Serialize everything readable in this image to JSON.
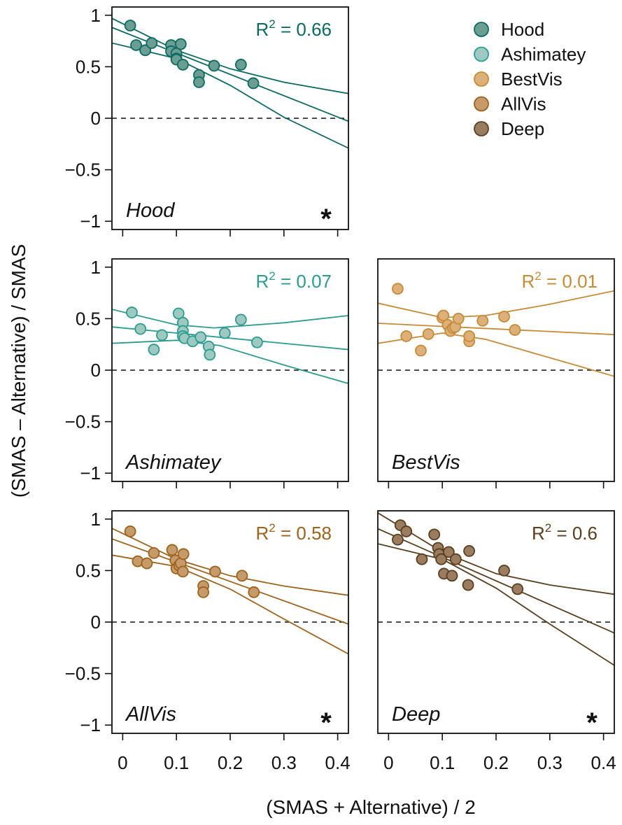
{
  "chart_data": {
    "type": "scatter",
    "xlabel": "(SMAS + Alternative)  / 2",
    "ylabel": "(SMAS – Alternative)  / SMAS",
    "xlim": [
      -0.02,
      0.42
    ],
    "ylim": [
      -1.08,
      1.08
    ],
    "xticks": [
      0,
      0.1,
      0.2,
      0.3,
      0.4
    ],
    "xtick_labels": [
      "0",
      "0.1",
      "0.2",
      "0.3",
      "0.4"
    ],
    "yticks": [
      1,
      0.5,
      0,
      -0.5,
      -1
    ],
    "ytick_labels": [
      "1",
      "0.5",
      "0",
      "−0.5",
      "−1"
    ],
    "zero_line": 0,
    "legend": {
      "placement": "top-right",
      "entries": [
        {
          "name": "Hood",
          "color": "#0b6b63"
        },
        {
          "name": "Ashimatey",
          "color": "#2b9d90"
        },
        {
          "name": "BestVis",
          "color": "#c98a36"
        },
        {
          "name": "AllVis",
          "color": "#a0621a"
        },
        {
          "name": "Deep",
          "color": "#5a3e1d"
        }
      ]
    },
    "panels": [
      {
        "name": "Hood",
        "row": 0,
        "col": 0,
        "color": "#0b6b63",
        "fill": "#6b9e93",
        "r2": "0.66",
        "significant": true,
        "points": [
          [
            0.014,
            0.9
          ],
          [
            0.025,
            0.71
          ],
          [
            0.042,
            0.66
          ],
          [
            0.054,
            0.73
          ],
          [
            0.09,
            0.71
          ],
          [
            0.09,
            0.65
          ],
          [
            0.1,
            0.63
          ],
          [
            0.1,
            0.58
          ],
          [
            0.1,
            0.57
          ],
          [
            0.108,
            0.72
          ],
          [
            0.112,
            0.52
          ],
          [
            0.142,
            0.42
          ],
          [
            0.142,
            0.35
          ],
          [
            0.17,
            0.51
          ],
          [
            0.22,
            0.52
          ],
          [
            0.243,
            0.34
          ]
        ],
        "fit": {
          "a": 0.84,
          "b": -2.07
        },
        "lower_band": [
          [
            -0.02,
            0.73
          ],
          [
            0.1,
            0.58
          ],
          [
            0.2,
            0.32
          ],
          [
            0.3,
            0.01
          ],
          [
            0.42,
            -0.29
          ]
        ],
        "upper_band": [
          [
            -0.02,
            0.97
          ],
          [
            0.1,
            0.66
          ],
          [
            0.2,
            0.48
          ],
          [
            0.3,
            0.35
          ],
          [
            0.42,
            0.24
          ]
        ]
      },
      {
        "name": "Ashimatey",
        "row": 1,
        "col": 0,
        "color": "#2b9d90",
        "fill": "#9dc9c0",
        "r2": "0.07",
        "significant": false,
        "points": [
          [
            0.017,
            0.56
          ],
          [
            0.033,
            0.4
          ],
          [
            0.058,
            0.2
          ],
          [
            0.073,
            0.34
          ],
          [
            0.104,
            0.55
          ],
          [
            0.112,
            0.46
          ],
          [
            0.112,
            0.38
          ],
          [
            0.112,
            0.33
          ],
          [
            0.115,
            0.31
          ],
          [
            0.13,
            0.28
          ],
          [
            0.145,
            0.32
          ],
          [
            0.16,
            0.23
          ],
          [
            0.162,
            0.15
          ],
          [
            0.19,
            0.36
          ],
          [
            0.22,
            0.49
          ],
          [
            0.25,
            0.27
          ]
        ],
        "fit": {
          "a": 0.41,
          "b": -0.5
        },
        "lower_band": [
          [
            -0.02,
            0.26
          ],
          [
            0.1,
            0.29
          ],
          [
            0.18,
            0.24
          ],
          [
            0.3,
            0.05
          ],
          [
            0.42,
            -0.13
          ]
        ],
        "upper_band": [
          [
            -0.02,
            0.59
          ],
          [
            0.1,
            0.44
          ],
          [
            0.17,
            0.41
          ],
          [
            0.3,
            0.46
          ],
          [
            0.42,
            0.53
          ]
        ]
      },
      {
        "name": "BestVis",
        "row": 1,
        "col": 1,
        "color": "#c98a36",
        "fill": "#dcb07a",
        "r2": "0.01",
        "significant": false,
        "points": [
          [
            0.017,
            0.79
          ],
          [
            0.033,
            0.33
          ],
          [
            0.06,
            0.19
          ],
          [
            0.074,
            0.35
          ],
          [
            0.1,
            0.51
          ],
          [
            0.102,
            0.53
          ],
          [
            0.11,
            0.44
          ],
          [
            0.115,
            0.38
          ],
          [
            0.12,
            0.41
          ],
          [
            0.124,
            0.42
          ],
          [
            0.13,
            0.5
          ],
          [
            0.15,
            0.28
          ],
          [
            0.15,
            0.33
          ],
          [
            0.175,
            0.48
          ],
          [
            0.215,
            0.52
          ],
          [
            0.235,
            0.39
          ]
        ],
        "fit": {
          "a": 0.45,
          "b": -0.25
        },
        "lower_band": [
          [
            -0.02,
            0.26
          ],
          [
            0.1,
            0.36
          ],
          [
            0.18,
            0.3
          ],
          [
            0.3,
            0.12
          ],
          [
            0.42,
            -0.06
          ]
        ],
        "upper_band": [
          [
            -0.02,
            0.65
          ],
          [
            0.1,
            0.51
          ],
          [
            0.18,
            0.53
          ],
          [
            0.3,
            0.64
          ],
          [
            0.42,
            0.77
          ]
        ]
      },
      {
        "name": "AllVis",
        "row": 2,
        "col": 0,
        "color": "#a0621a",
        "fill": "#c59b6c",
        "r2": "0.58",
        "significant": true,
        "points": [
          [
            0.014,
            0.88
          ],
          [
            0.028,
            0.59
          ],
          [
            0.045,
            0.57
          ],
          [
            0.058,
            0.67
          ],
          [
            0.092,
            0.7
          ],
          [
            0.098,
            0.6
          ],
          [
            0.1,
            0.52
          ],
          [
            0.105,
            0.55
          ],
          [
            0.108,
            0.57
          ],
          [
            0.112,
            0.49
          ],
          [
            0.113,
            0.66
          ],
          [
            0.15,
            0.35
          ],
          [
            0.15,
            0.29
          ],
          [
            0.172,
            0.49
          ],
          [
            0.222,
            0.45
          ],
          [
            0.244,
            0.29
          ]
        ],
        "fit": {
          "a": 0.77,
          "b": -1.88
        },
        "lower_band": [
          [
            -0.02,
            0.65
          ],
          [
            0.1,
            0.54
          ],
          [
            0.2,
            0.32
          ],
          [
            0.3,
            0.03
          ],
          [
            0.42,
            -0.31
          ]
        ],
        "upper_band": [
          [
            -0.02,
            0.91
          ],
          [
            0.1,
            0.61
          ],
          [
            0.2,
            0.45
          ],
          [
            0.3,
            0.35
          ],
          [
            0.42,
            0.26
          ]
        ]
      },
      {
        "name": "Deep",
        "row": 2,
        "col": 1,
        "color": "#5a3e1d",
        "fill": "#9a7d60",
        "r2": "0.6",
        "significant": true,
        "points": [
          [
            0.017,
            0.8
          ],
          [
            0.022,
            0.94
          ],
          [
            0.033,
            0.88
          ],
          [
            0.062,
            0.61
          ],
          [
            0.085,
            0.85
          ],
          [
            0.092,
            0.72
          ],
          [
            0.094,
            0.66
          ],
          [
            0.098,
            0.61
          ],
          [
            0.103,
            0.47
          ],
          [
            0.112,
            0.68
          ],
          [
            0.118,
            0.45
          ],
          [
            0.125,
            0.61
          ],
          [
            0.148,
            0.36
          ],
          [
            0.15,
            0.69
          ],
          [
            0.215,
            0.5
          ],
          [
            0.24,
            0.32
          ]
        ],
        "fit": {
          "a": 0.86,
          "b": -2.3
        },
        "lower_band": [
          [
            -0.02,
            0.76
          ],
          [
            0.1,
            0.61
          ],
          [
            0.2,
            0.33
          ],
          [
            0.3,
            -0.02
          ],
          [
            0.42,
            -0.42
          ]
        ],
        "upper_band": [
          [
            -0.02,
            1.06
          ],
          [
            0.1,
            0.68
          ],
          [
            0.2,
            0.47
          ],
          [
            0.3,
            0.36
          ],
          [
            0.42,
            0.27
          ]
        ]
      }
    ]
  }
}
